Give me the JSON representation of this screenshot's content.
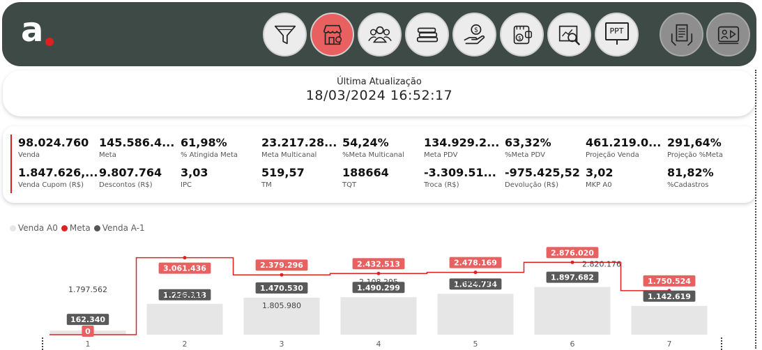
{
  "header": {
    "logo_text": "a",
    "nav": [
      {
        "name": "filter-icon",
        "label": ""
      },
      {
        "name": "store-icon",
        "label": ""
      },
      {
        "name": "people-icon",
        "label": ""
      },
      {
        "name": "stack-icon",
        "label": ""
      },
      {
        "name": "money-hand-icon",
        "label": ""
      },
      {
        "name": "wallet-icon",
        "label": ""
      },
      {
        "name": "analysis-icon",
        "label": ""
      },
      {
        "name": "presentation-icon",
        "label": "PPT"
      },
      {
        "name": "document-hands-icon",
        "label": ""
      },
      {
        "name": "video-player-icon",
        "label": ""
      }
    ],
    "colors": {
      "bar": "#3d4a45",
      "active": "#e8605f",
      "accent": "#e02020"
    }
  },
  "update": {
    "label": "Última Atualização",
    "value": "18/03/2024 16:52:17"
  },
  "kpis": [
    {
      "value": "98.024.760",
      "label": "Venda"
    },
    {
      "value": "145.586.4...",
      "label": "Meta"
    },
    {
      "value": "61,98%",
      "label": "% Atingida Meta"
    },
    {
      "value": "23.217.28...",
      "label": "Meta Multicanal"
    },
    {
      "value": "54,24%",
      "label": "%Meta Multicanal"
    },
    {
      "value": "134.929.2...",
      "label": "Meta PDV"
    },
    {
      "value": "63,32%",
      "label": "%Meta PDV"
    },
    {
      "value": "461.219.0...",
      "label": "Projeção Venda"
    },
    {
      "value": "291,64%",
      "label": "Projeção %Meta"
    },
    {
      "value": "1.847.626,...",
      "label": "Venda Cupom (R$)"
    },
    {
      "value": "9.807.764",
      "label": "Descontos (R$)"
    },
    {
      "value": "3,03",
      "label": "IPC"
    },
    {
      "value": "519,57",
      "label": "TM"
    },
    {
      "value": "188664",
      "label": "TQT"
    },
    {
      "value": "-3.309.51...",
      "label": "Troca (R$)"
    },
    {
      "value": "-975.425,52",
      "label": "Devolução (R$)"
    },
    {
      "value": "3,02",
      "label": "MKP A0"
    },
    {
      "value": "81,82%",
      "label": "%Cadastros"
    }
  ],
  "legend": [
    {
      "label": "Venda A0",
      "color": "#e6e6e6"
    },
    {
      "label": "Meta",
      "color": "#e02020"
    },
    {
      "label": "Venda A-1",
      "color": "#555555"
    }
  ],
  "chart_data": {
    "type": "bar",
    "categories": [
      "1",
      "2",
      "3",
      "4",
      "5",
      "6",
      "7"
    ],
    "series": [
      {
        "name": "Venda A0",
        "values": [
          162340,
          1226118,
          1470530,
          1490299,
          1624734,
          1897682,
          1142619
        ],
        "labels": [
          "162.340",
          "1.226.118",
          "1.470.530",
          "1.490.299",
          "1.624.734",
          "1.897.682",
          "1.142.619"
        ],
        "color": "#e6e6e6"
      },
      {
        "name": "Meta",
        "values": [
          0,
          3061436,
          2379296,
          2432513,
          2478169,
          2876020,
          1750524
        ],
        "labels": [
          "0",
          "3.061.436",
          "2.379.296",
          "2.432.513",
          "2.478.169",
          "2.876.020",
          "1.750.524"
        ],
        "color": "#e02020"
      },
      {
        "name": "Venda A-1",
        "values": [
          1797562,
          1746344,
          1805980,
          2108295,
          2064793,
          2820176,
          null
        ],
        "labels": [
          "1.797.562",
          "1.746.344",
          "1.805.980",
          "2.108.295",
          "2.064.793",
          "2.820.176",
          ""
        ],
        "color": "#555555"
      }
    ],
    "ylim": [
      0,
      3300000
    ],
    "grid": false,
    "legend_position": "top-left"
  }
}
